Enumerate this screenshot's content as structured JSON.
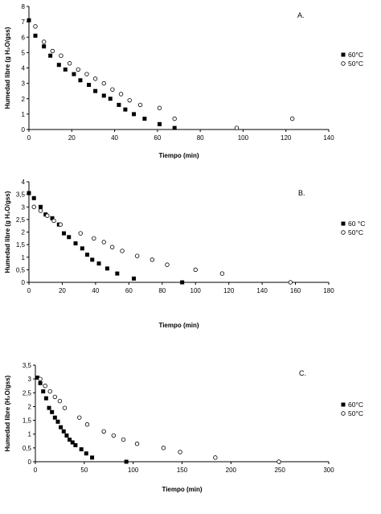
{
  "chart_data": [
    {
      "type": "scatter",
      "panel_label": "A.",
      "xlabel": "Tiempo (min)",
      "ylabel": "Humedad libre (g H₂O/gss)",
      "xlim": [
        0,
        140
      ],
      "ylim": [
        0,
        8
      ],
      "x_ticks": [
        "0",
        "20",
        "40",
        "60",
        "80",
        "100",
        "120",
        "140"
      ],
      "y_ticks": [
        "0",
        "1",
        "2",
        "3",
        "4",
        "5",
        "6",
        "7",
        "8"
      ],
      "legend_position": "right",
      "series": [
        {
          "name": "60°C",
          "marker": "filled-square",
          "x": [
            0,
            3,
            7,
            10,
            14,
            17,
            21,
            24,
            28,
            31,
            35,
            38,
            42,
            45,
            49,
            54,
            61,
            68
          ],
          "y": [
            7.1,
            6.1,
            5.4,
            4.8,
            4.2,
            3.9,
            3.6,
            3.2,
            2.9,
            2.5,
            2.2,
            2.0,
            1.6,
            1.3,
            1.0,
            0.7,
            0.35,
            0.1
          ]
        },
        {
          "name": "50°C",
          "marker": "open-circle",
          "x": [
            3,
            7,
            11,
            15,
            19,
            23,
            27,
            31,
            35,
            39,
            43,
            47,
            52,
            61,
            68,
            97,
            123
          ],
          "y": [
            6.7,
            5.7,
            5.1,
            4.8,
            4.3,
            3.9,
            3.6,
            3.3,
            3.0,
            2.6,
            2.3,
            1.9,
            1.6,
            1.4,
            0.7,
            0.1,
            0.7
          ]
        }
      ]
    },
    {
      "type": "scatter",
      "panel_label": "B.",
      "xlabel": "Tiempo (min)",
      "ylabel": "Humedad libre (g H₂O/gss)",
      "xlim": [
        0,
        180
      ],
      "ylim": [
        0,
        4
      ],
      "x_ticks": [
        "0",
        "20",
        "40",
        "60",
        "80",
        "100",
        "120",
        "140",
        "160",
        "180"
      ],
      "y_ticks": [
        "0",
        "0,5",
        "1",
        "1,5",
        "2",
        "2,5",
        "3",
        "3,5",
        "4"
      ],
      "legend_position": "right",
      "series": [
        {
          "name": "60 °C",
          "marker": "filled-square",
          "x": [
            0,
            3,
            7,
            10,
            14,
            18,
            21,
            24,
            28,
            32,
            35,
            38,
            42,
            47,
            53,
            63,
            92
          ],
          "y": [
            3.55,
            3.35,
            3.0,
            2.7,
            2.55,
            2.3,
            1.95,
            1.8,
            1.55,
            1.35,
            1.1,
            0.9,
            0.75,
            0.55,
            0.35,
            0.15,
            0.0
          ]
        },
        {
          "name": "50°C",
          "marker": "open-circle",
          "x": [
            3,
            7,
            11,
            15,
            19,
            31,
            39,
            45,
            50,
            56,
            65,
            74,
            83,
            100,
            116,
            157
          ],
          "y": [
            3.0,
            2.85,
            2.65,
            2.45,
            2.3,
            1.95,
            1.75,
            1.6,
            1.4,
            1.25,
            1.05,
            0.9,
            0.7,
            0.5,
            0.35,
            0.0
          ]
        }
      ]
    },
    {
      "type": "scatter",
      "panel_label": "C.",
      "xlabel": "Tiempo (min)",
      "ylabel": "Humedad libre (H₂O/gss)",
      "xlim": [
        0,
        300
      ],
      "ylim": [
        0,
        3.5
      ],
      "x_ticks": [
        "0",
        "50",
        "100",
        "150",
        "200",
        "250",
        "300"
      ],
      "y_ticks": [
        "0",
        "0,5",
        "1",
        "1,5",
        "2",
        "2,5",
        "3",
        "3,5"
      ],
      "legend_position": "right",
      "series": [
        {
          "name": "60°C",
          "marker": "filled-square",
          "x": [
            2,
            5,
            8,
            11,
            14,
            17,
            20,
            23,
            26,
            29,
            32,
            35,
            38,
            41,
            47,
            52,
            58,
            93
          ],
          "y": [
            3.05,
            2.85,
            2.55,
            2.3,
            1.95,
            1.8,
            1.6,
            1.45,
            1.25,
            1.1,
            0.95,
            0.8,
            0.7,
            0.6,
            0.45,
            0.3,
            0.15,
            0.0
          ]
        },
        {
          "name": "50°C",
          "marker": "open-circle",
          "x": [
            5,
            10,
            15,
            20,
            25,
            30,
            45,
            53,
            70,
            80,
            90,
            104,
            131,
            148,
            184,
            249
          ],
          "y": [
            3.0,
            2.75,
            2.55,
            2.35,
            2.2,
            1.95,
            1.6,
            1.35,
            1.1,
            0.95,
            0.8,
            0.65,
            0.5,
            0.35,
            0.15,
            0.0
          ]
        }
      ]
    }
  ]
}
